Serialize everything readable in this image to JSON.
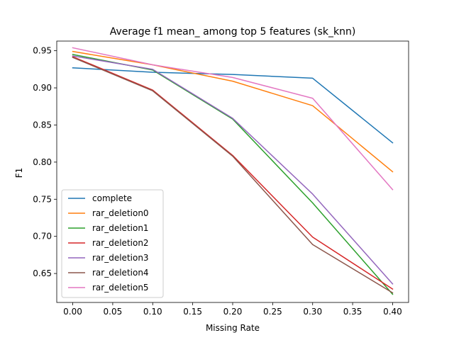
{
  "chart_data": {
    "type": "line",
    "title": "Average f1 mean_ among top 5 features (sk_knn)",
    "xlabel": "Missing Rate",
    "ylabel": "F1",
    "xlim": [
      -0.02,
      0.42
    ],
    "ylim": [
      0.611,
      0.963
    ],
    "xticks": [
      "0.00",
      "0.05",
      "0.10",
      "0.15",
      "0.20",
      "0.25",
      "0.30",
      "0.35",
      "0.40"
    ],
    "yticks": [
      "0.65",
      "0.70",
      "0.75",
      "0.80",
      "0.85",
      "0.90",
      "0.95"
    ],
    "legend_position": "lower-left",
    "x": [
      0.0,
      0.1,
      0.2,
      0.3,
      0.4
    ],
    "series": [
      {
        "name": "complete",
        "color": "#1f77b4",
        "values": [
          0.927,
          0.921,
          0.918,
          0.913,
          0.826
        ]
      },
      {
        "name": "rar_deletion0",
        "color": "#ff7f0e",
        "values": [
          0.949,
          0.931,
          0.909,
          0.876,
          0.787
        ]
      },
      {
        "name": "rar_deletion1",
        "color": "#2ca02c",
        "values": [
          0.945,
          0.924,
          0.858,
          0.745,
          0.622
        ]
      },
      {
        "name": "rar_deletion2",
        "color": "#d62728",
        "values": [
          0.942,
          0.897,
          0.809,
          0.699,
          0.629
        ]
      },
      {
        "name": "rar_deletion3",
        "color": "#9467bd",
        "values": [
          0.943,
          0.925,
          0.859,
          0.757,
          0.636
        ]
      },
      {
        "name": "rar_deletion4",
        "color": "#8c564b",
        "values": [
          0.941,
          0.896,
          0.808,
          0.689,
          0.624
        ]
      },
      {
        "name": "rar_deletion5",
        "color": "#e377c2",
        "values": [
          0.954,
          0.931,
          0.914,
          0.886,
          0.763
        ]
      }
    ]
  }
}
